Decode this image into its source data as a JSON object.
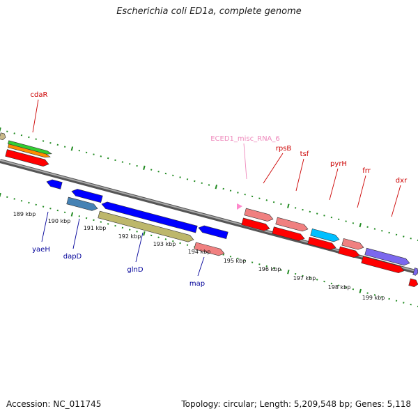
{
  "title": "Escherichia coli ED1a, complete genome",
  "footer": {
    "accession": "Accession: NC_011745",
    "info": "Topology: circular; Length: 5,209,548 bp; Genes: 5,118"
  },
  "colors": {
    "red": "#ff0000",
    "salmon": "#f08080",
    "blue": "#0000ff",
    "steel": "#4682b4",
    "khaki": "#bdb76b",
    "cyan": "#00bfff",
    "slate": "#7b68ee",
    "green": "#32cd32",
    "orange": "#ff8c00",
    "tan": "#c8b88a",
    "pink": "#ff88cc",
    "label_red": "#cc0000",
    "label_blue": "#000099",
    "label_pink": "#ee88bb",
    "tick_green": "#228b22",
    "backbone": "#888888"
  },
  "tick_labels": [
    "189 kbp",
    "190 kbp",
    "191 kbp",
    "192 kbp",
    "193 kbp",
    "194 kbp",
    "195 kbp",
    "196 kbp",
    "197 kbp",
    "198 kbp",
    "199 kbp"
  ],
  "gene_labels": [
    {
      "name": "cdaR",
      "color": "label_red"
    },
    {
      "name": "ECED1_misc_RNA_6",
      "color": "label_pink"
    },
    {
      "name": "rpsB",
      "color": "label_red"
    },
    {
      "name": "tsf",
      "color": "label_red"
    },
    {
      "name": "pyrH",
      "color": "label_red"
    },
    {
      "name": "frr",
      "color": "label_red"
    },
    {
      "name": "dxr",
      "color": "label_red"
    },
    {
      "name": "yaeH",
      "color": "label_blue"
    },
    {
      "name": "dapD",
      "color": "label_blue"
    },
    {
      "name": "glnD",
      "color": "label_blue"
    },
    {
      "name": "map",
      "color": "label_blue"
    }
  ]
}
